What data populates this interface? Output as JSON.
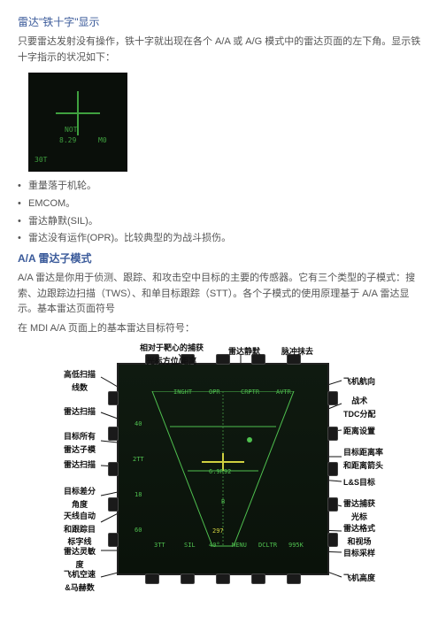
{
  "title": "雷达\"铁十字\"显示",
  "intro": "只要雷达发射没有操作，铁十字就出现在各个 A/A 或 A/G 模式中的雷达页面的左下角。显示铁 十字指示的状况如下：",
  "smallfig": {
    "t1": "NOT",
    "t2": "8.29",
    "t3": "M0",
    "t4": "30T"
  },
  "bullets": [
    "重量落于机轮。",
    "EMCOM。",
    "雷达静默(SIL)。",
    "雷达没有运作(OPR)。比较典型的为战斗损伤。"
  ],
  "sec2_title": "A/A 雷达子模式",
  "sec2_para": "A/A 雷达是你用于侦测、跟踪、和攻击空中目标的主要的传感器。它有三个类型的子模式：搜索、边跟踪边扫描（TWS）、和单目标跟踪（STT）。各个子模式的使用原理基于 A/A 雷达显示。基本雷达页面符号",
  "sec2_line2": "在 MDI A/A 页面上的基本雷达目标符号：",
  "bigfig": {
    "top_labels": [
      "INGHT",
      "OPR",
      "CRPTR",
      "AVTR"
    ],
    "callouts_left": [
      "高低扫描\n线数",
      "雷达扫描",
      "目标所有\n雷达子模",
      "雷达扫描",
      "目标差分\n角度",
      "天线自动\n和跟踪目\n标字线",
      "雷达灵敏\n度",
      "飞机空速\n&马赫数"
    ],
    "callouts_top": [
      "相对于靶心的捕获\n光标方位/距离",
      "雷达静默",
      "脉冲抹去"
    ],
    "callouts_right": [
      "飞机航向",
      "战术\nTDC分配",
      "距离设置",
      "目标距离率\n和距离箭头",
      "L&S目标",
      "雷达捕获\n光标",
      "雷达格式\n和视场",
      "目标采样",
      "飞机高度"
    ],
    "bot_labels": [
      "3TT",
      "SIL",
      "40°",
      "MENU",
      "DCLTR",
      "995K"
    ],
    "left_nums": [
      "40",
      "2TT",
      "18",
      "60"
    ],
    "center": [
      "6.9R92",
      "B"
    ],
    "ownship": "297"
  }
}
